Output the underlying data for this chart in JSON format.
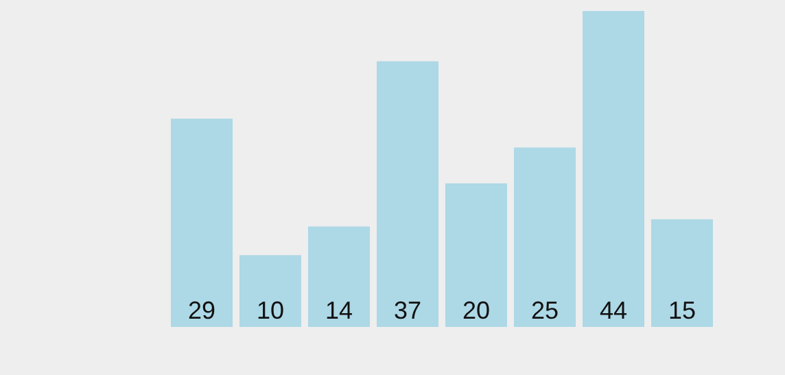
{
  "chart_data": {
    "type": "bar",
    "categories": [
      null,
      null,
      null,
      null,
      null,
      null,
      null,
      null
    ],
    "values": [
      29,
      10,
      14,
      37,
      20,
      25,
      44,
      15
    ],
    "color": "#add8e6",
    "data_labels": true
  }
}
